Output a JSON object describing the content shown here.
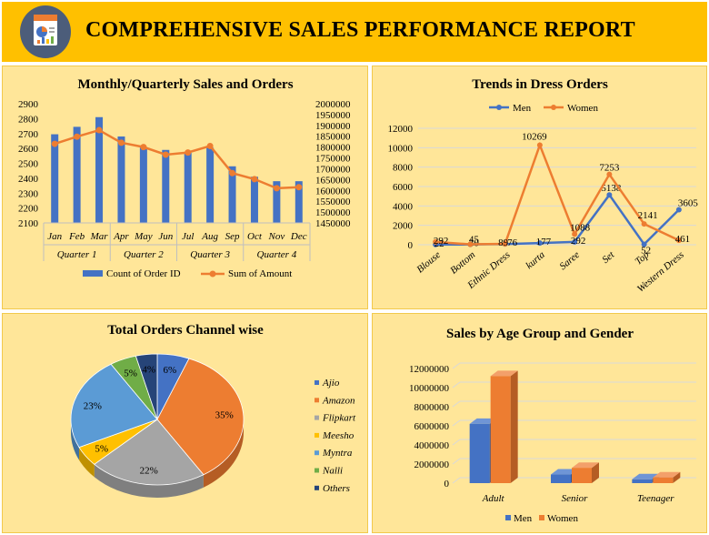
{
  "header": {
    "title": "COMPREHENSIVE SALES PERFORMANCE REPORT",
    "logo_icon": "report-document-icon"
  },
  "colors": {
    "blue": "#4472c4",
    "orange": "#ed7d31",
    "gray": "#a5a5a5",
    "gold": "#ffc000",
    "lightblue": "#5b9bd5",
    "green": "#70ad47",
    "navy": "#264478",
    "panel": "#ffe699"
  },
  "chart_data": [
    {
      "type": "bar",
      "title": "Monthly/Quarterly Sales and Orders",
      "categories": [
        "Jan",
        "Feb",
        "Mar",
        "Apr",
        "May",
        "Jun",
        "Jul",
        "Aug",
        "Sep",
        "Oct",
        "Nov",
        "Dec"
      ],
      "groups": [
        {
          "label": "Quarter 1",
          "span": 3
        },
        {
          "label": "Quarter 2",
          "span": 3
        },
        {
          "label": "Quarter 3",
          "span": 3
        },
        {
          "label": "Quarter 4",
          "span": 3
        }
      ],
      "series": [
        {
          "name": "Count of Order ID",
          "axis": "left",
          "kind": "bar",
          "values": [
            2695,
            2745,
            2810,
            2680,
            2610,
            2590,
            2570,
            2605,
            2480,
            2410,
            2380,
            2380
          ]
        },
        {
          "name": "Sum of Amount",
          "axis": "right",
          "kind": "line",
          "values": [
            1815000,
            1848000,
            1878000,
            1820000,
            1800000,
            1765000,
            1775000,
            1805000,
            1680000,
            1652000,
            1610000,
            1615000
          ]
        }
      ],
      "y_left": {
        "min": 2100,
        "max": 2900,
        "ticks": [
          "2100",
          "2200",
          "2300",
          "2400",
          "2500",
          "2600",
          "2700",
          "2800",
          "2900"
        ]
      },
      "y_right": {
        "min": 1450000,
        "max": 2000000,
        "ticks": [
          "1450000",
          "1500000",
          "1550000",
          "1600000",
          "1650000",
          "1700000",
          "1750000",
          "1800000",
          "1850000",
          "1900000",
          "1950000",
          "2000000"
        ]
      },
      "legend": "bottom"
    },
    {
      "type": "line",
      "title": "Trends in Dress Orders",
      "categories": [
        "Blouse",
        "Bottom",
        "Ethnic Dress",
        "kurta",
        "Saree",
        "Set",
        "Top",
        "Western Dress"
      ],
      "series": [
        {
          "name": "Men",
          "values": [
            22,
            30,
            76,
            177,
            292,
            5138,
            52,
            3605
          ],
          "labels": [
            "22",
            "30",
            "76",
            "177",
            "292",
            "5138",
            "52",
            "3605"
          ]
        },
        {
          "name": "Women",
          "values": [
            292,
            45,
            89,
            10269,
            1088,
            7253,
            2141,
            461
          ],
          "labels": [
            "292",
            "45",
            "89",
            "10269",
            "1088",
            "7253",
            "2141",
            "461"
          ]
        }
      ],
      "ylim": [
        0,
        12000
      ],
      "y_ticks": [
        "0",
        "2000",
        "4000",
        "6000",
        "8000",
        "10000",
        "12000"
      ],
      "legend": "top"
    },
    {
      "type": "pie",
      "title": "Total Orders Channel wise",
      "slices": [
        {
          "label": "Ajio",
          "value": 6,
          "text": "6%"
        },
        {
          "label": "Amazon",
          "value": 35,
          "text": "35%"
        },
        {
          "label": "Flipkart",
          "value": 22,
          "text": "22%"
        },
        {
          "label": "Meesho",
          "value": 5,
          "text": "5%"
        },
        {
          "label": "Myntra",
          "value": 23,
          "text": "23%"
        },
        {
          "label": "Nalli",
          "value": 5,
          "text": "5%"
        },
        {
          "label": "Others",
          "value": 4,
          "text": "4%"
        }
      ],
      "legend": "right"
    },
    {
      "type": "bar",
      "title": "Sales by Age Group and Gender",
      "categories": [
        "Adult",
        "Senior",
        "Teenager"
      ],
      "series": [
        {
          "name": "Men",
          "values": [
            6200000,
            900000,
            400000
          ]
        },
        {
          "name": "Women",
          "values": [
            11200000,
            1600000,
            600000
          ]
        }
      ],
      "ylim": [
        0,
        12000000
      ],
      "y_ticks": [
        "0",
        "2000000",
        "4000000",
        "6000000",
        "8000000",
        "10000000",
        "12000000"
      ],
      "legend": "bottom"
    }
  ]
}
